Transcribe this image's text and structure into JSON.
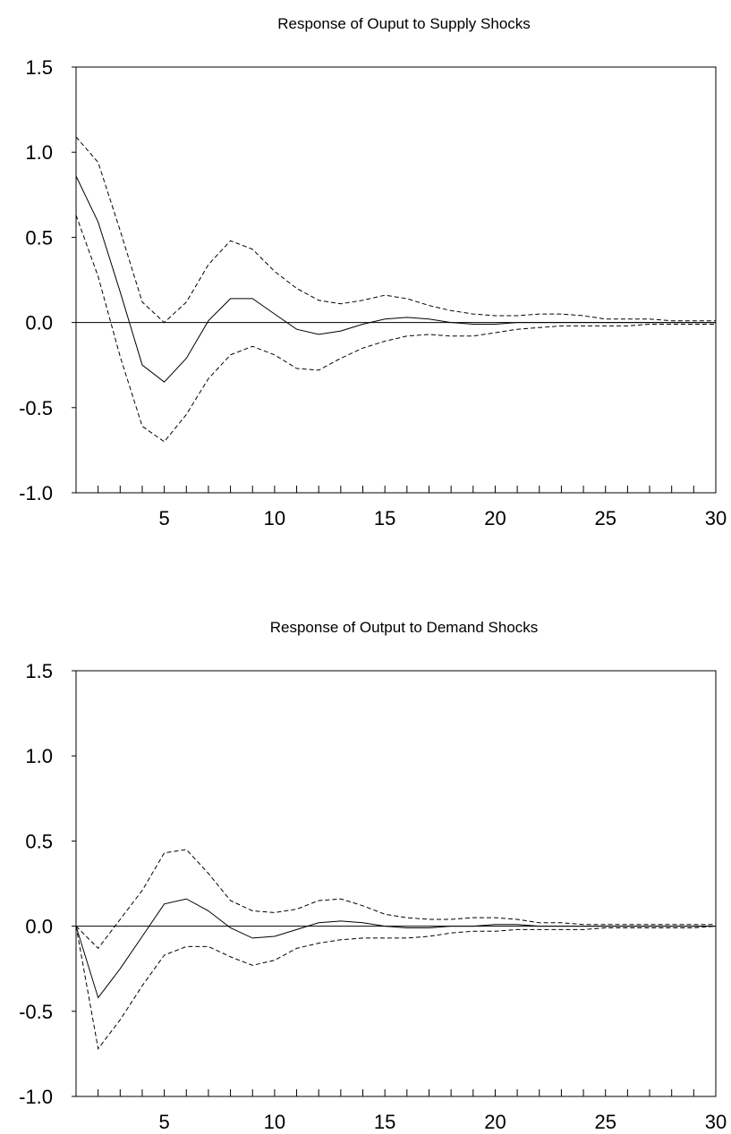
{
  "chart_data": [
    {
      "type": "line",
      "title": "Response of Ouput  to Supply Shocks",
      "xlabel": "",
      "ylabel": "",
      "xlim": [
        1,
        30
      ],
      "ylim": [
        -1.0,
        1.5
      ],
      "x_ticks": [
        5,
        10,
        15,
        20,
        25,
        30
      ],
      "y_ticks": [
        "1.5",
        "1.0",
        "0.5",
        "0.0",
        "-0.5",
        "-1.0"
      ],
      "y_tick_values": [
        1.5,
        1.0,
        0.5,
        0.0,
        -0.5,
        -1.0
      ],
      "zero_line": true,
      "grid": false,
      "x": [
        1,
        2,
        3,
        4,
        5,
        6,
        7,
        8,
        9,
        10,
        11,
        12,
        13,
        14,
        15,
        16,
        17,
        18,
        19,
        20,
        21,
        22,
        23,
        24,
        25,
        26,
        27,
        28,
        29,
        30
      ],
      "series": [
        {
          "style": "solid",
          "values": [
            0.86,
            0.59,
            0.18,
            -0.25,
            -0.35,
            -0.21,
            0.01,
            0.14,
            0.14,
            0.05,
            -0.04,
            -0.07,
            -0.05,
            -0.01,
            0.02,
            0.03,
            0.02,
            0.0,
            -0.01,
            -0.01,
            0.0,
            0.0,
            0.0,
            0.0,
            0.0,
            0.0,
            0.0,
            0.0,
            0.0,
            0.0
          ]
        },
        {
          "style": "dashed",
          "values": [
            1.09,
            0.94,
            0.54,
            0.12,
            0.0,
            0.12,
            0.34,
            0.48,
            0.43,
            0.3,
            0.2,
            0.13,
            0.11,
            0.13,
            0.16,
            0.14,
            0.1,
            0.07,
            0.05,
            0.04,
            0.04,
            0.05,
            0.05,
            0.04,
            0.02,
            0.02,
            0.02,
            0.01,
            0.01,
            0.01
          ]
        },
        {
          "style": "dashed",
          "values": [
            0.63,
            0.27,
            -0.2,
            -0.61,
            -0.7,
            -0.54,
            -0.33,
            -0.19,
            -0.14,
            -0.19,
            -0.27,
            -0.28,
            -0.21,
            -0.15,
            -0.11,
            -0.08,
            -0.07,
            -0.08,
            -0.08,
            -0.06,
            -0.04,
            -0.03,
            -0.02,
            -0.02,
            -0.02,
            -0.02,
            -0.01,
            -0.01,
            -0.01,
            -0.01
          ]
        }
      ]
    },
    {
      "type": "line",
      "title": "Response of Output  to Demand Shocks",
      "xlabel": "",
      "ylabel": "",
      "xlim": [
        1,
        30
      ],
      "ylim": [
        -1.0,
        1.5
      ],
      "x_ticks": [
        5,
        10,
        15,
        20,
        25,
        30
      ],
      "y_ticks": [
        "1.5",
        "1.0",
        "0.5",
        "0.0",
        "-0.5",
        "-1.0"
      ],
      "y_tick_values": [
        1.5,
        1.0,
        0.5,
        0.0,
        -0.5,
        -1.0
      ],
      "zero_line": true,
      "grid": false,
      "x": [
        1,
        2,
        3,
        4,
        5,
        6,
        7,
        8,
        9,
        10,
        11,
        12,
        13,
        14,
        15,
        16,
        17,
        18,
        19,
        20,
        21,
        22,
        23,
        24,
        25,
        26,
        27,
        28,
        29,
        30
      ],
      "series": [
        {
          "style": "solid",
          "values": [
            0.0,
            -0.42,
            -0.25,
            -0.06,
            0.13,
            0.16,
            0.09,
            -0.01,
            -0.07,
            -0.06,
            -0.02,
            0.02,
            0.03,
            0.02,
            0.0,
            -0.01,
            -0.01,
            0.0,
            0.0,
            0.01,
            0.01,
            0.0,
            0.0,
            0.0,
            0.0,
            0.0,
            0.0,
            0.0,
            0.0,
            0.0
          ]
        },
        {
          "style": "dashed",
          "values": [
            0.0,
            -0.13,
            0.04,
            0.21,
            0.43,
            0.45,
            0.31,
            0.15,
            0.09,
            0.08,
            0.1,
            0.15,
            0.16,
            0.12,
            0.07,
            0.05,
            0.04,
            0.04,
            0.05,
            0.05,
            0.04,
            0.02,
            0.02,
            0.01,
            0.01,
            0.01,
            0.01,
            0.01,
            0.01,
            0.01
          ]
        },
        {
          "style": "dashed",
          "values": [
            0.0,
            -0.72,
            -0.55,
            -0.35,
            -0.17,
            -0.12,
            -0.12,
            -0.18,
            -0.23,
            -0.2,
            -0.13,
            -0.1,
            -0.08,
            -0.07,
            -0.07,
            -0.07,
            -0.06,
            -0.04,
            -0.03,
            -0.03,
            -0.02,
            -0.02,
            -0.02,
            -0.02,
            -0.01,
            -0.01,
            -0.01,
            -0.01,
            -0.01,
            0.0
          ]
        }
      ]
    }
  ]
}
